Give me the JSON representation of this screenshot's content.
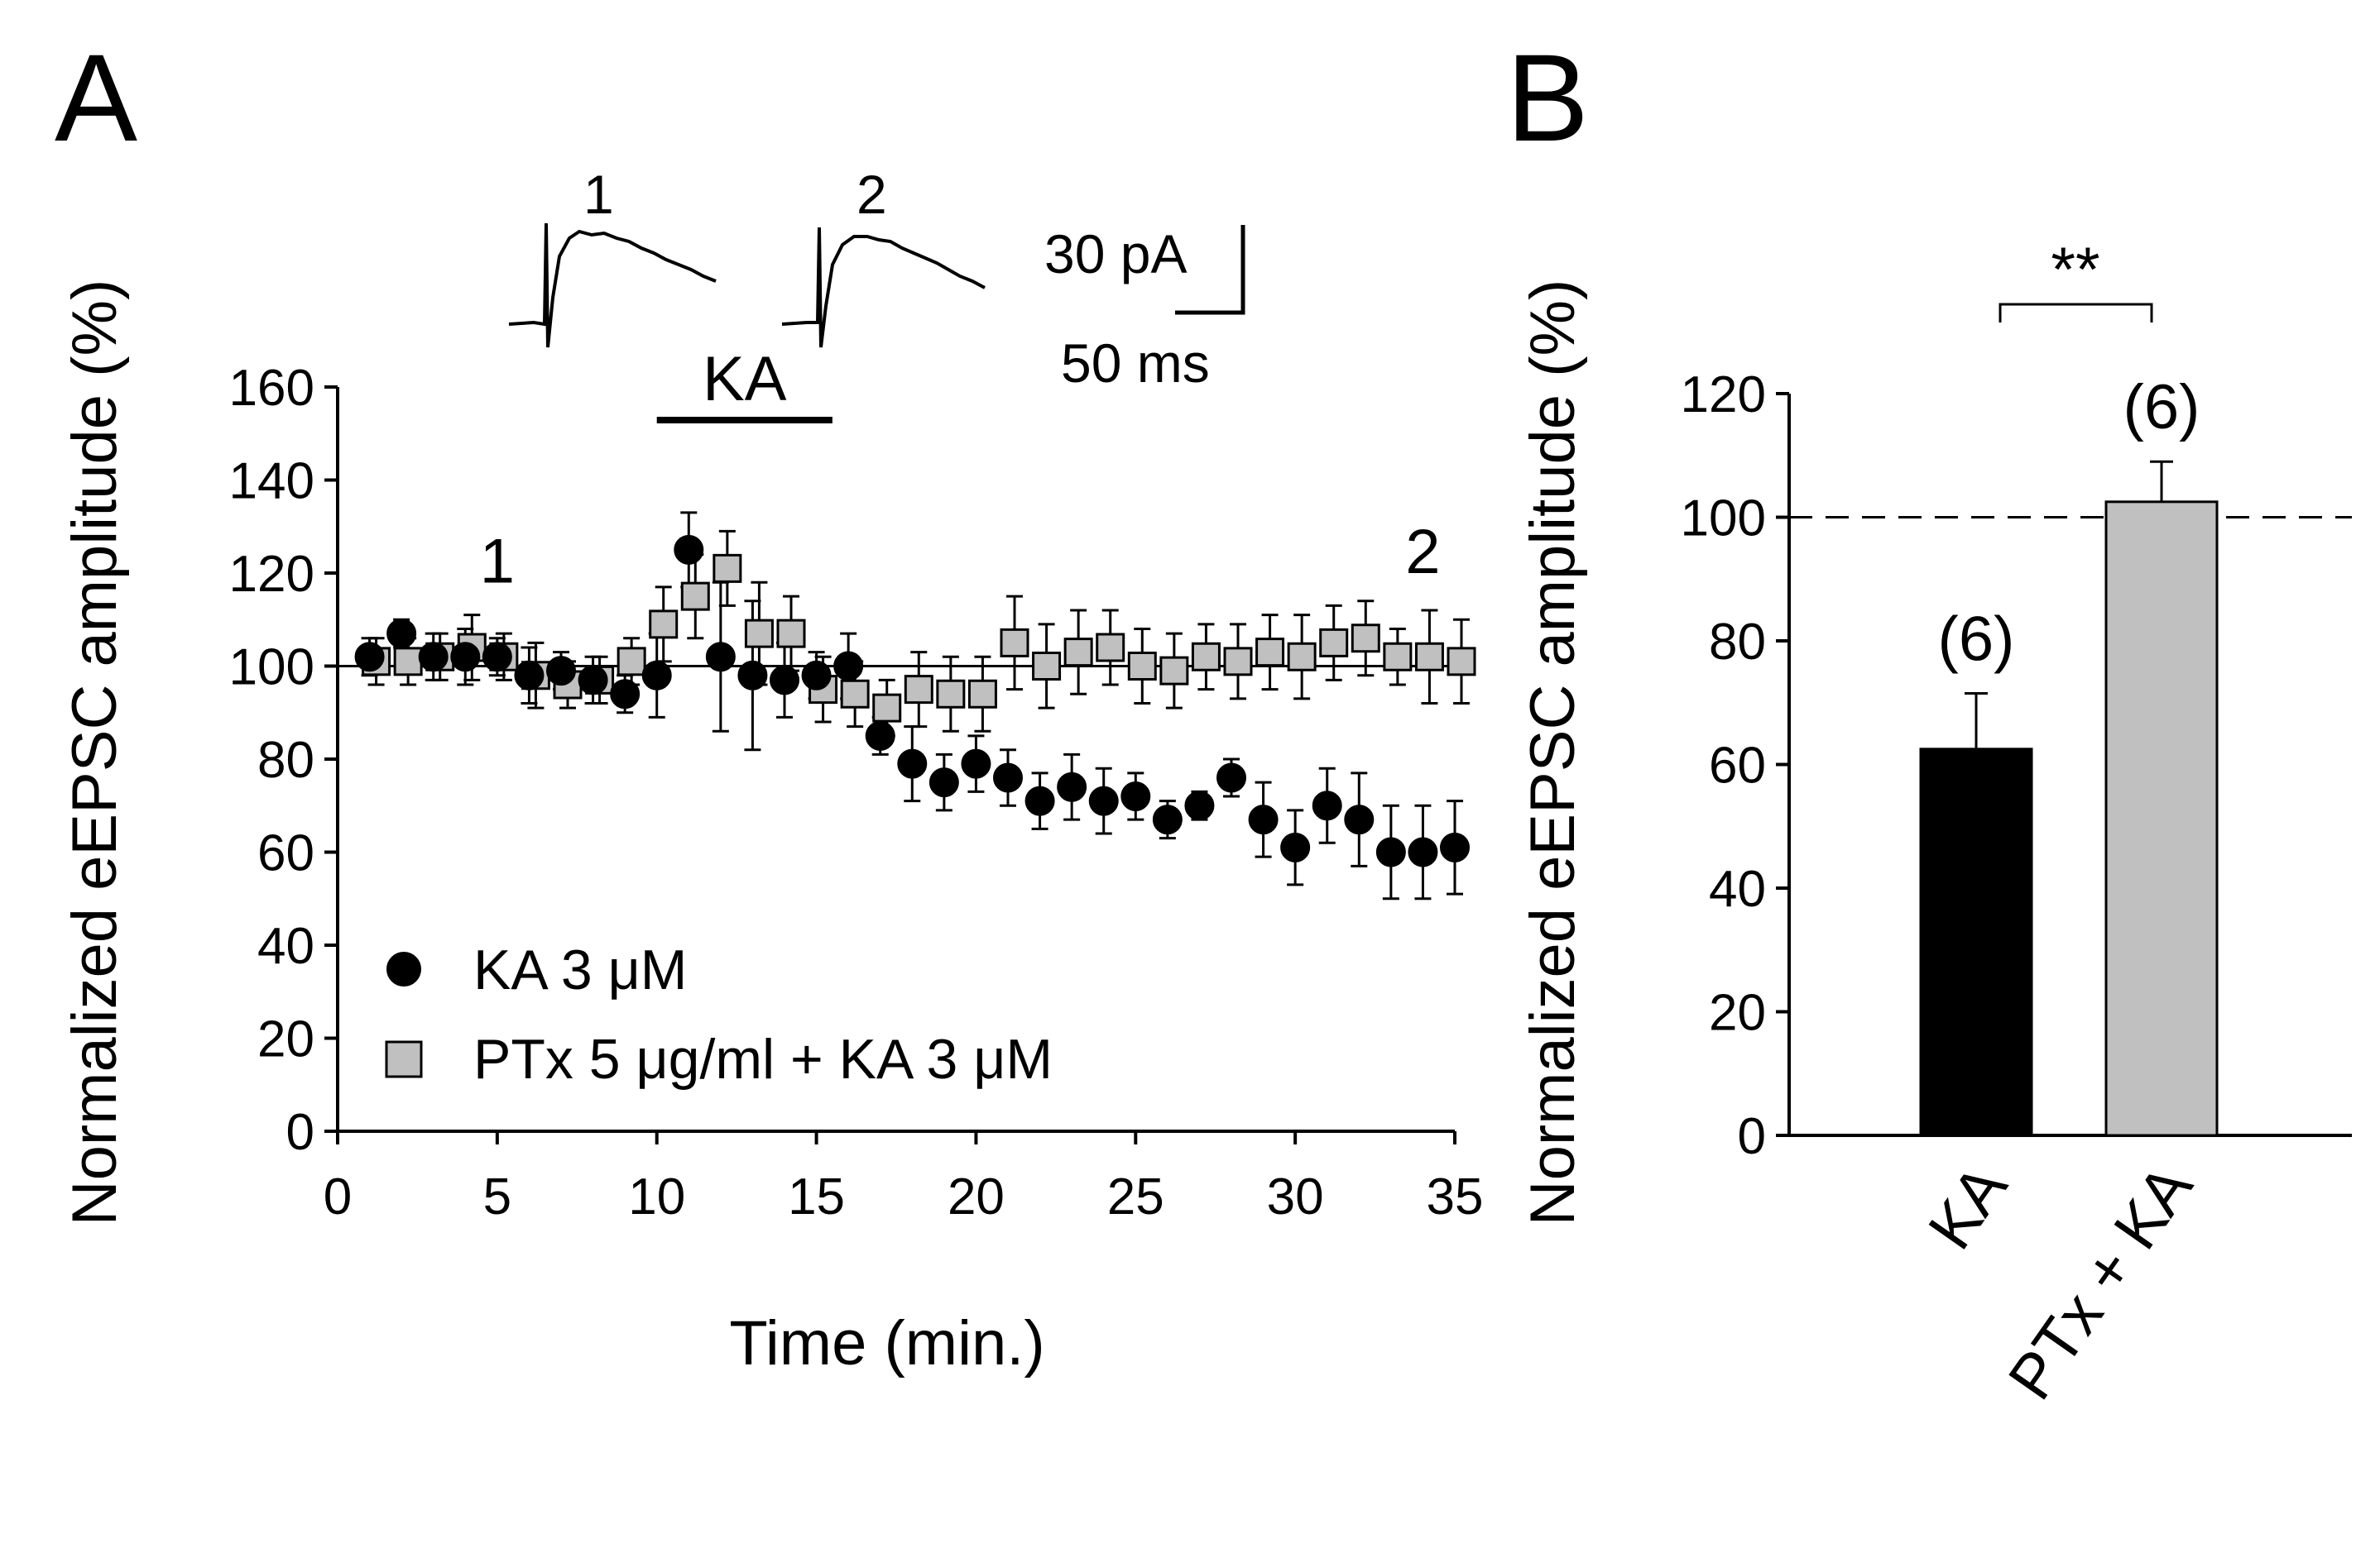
{
  "panels": {
    "A": {
      "letter": "A",
      "chart_data": {
        "type": "scatter",
        "xlabel": "Time (min.)",
        "ylabel": "Normalized eEPSC amplitude (%)",
        "xlim": [
          0,
          35
        ],
        "ylim": [
          0,
          160
        ],
        "xticks": [
          0,
          5,
          10,
          15,
          20,
          25,
          30,
          35
        ],
        "yticks": [
          0,
          20,
          40,
          60,
          80,
          100,
          120,
          140,
          160
        ],
        "baseline": 100,
        "legend_position": "lower-left",
        "drug_bar": {
          "label": "KA",
          "from": 10,
          "to": 15.5
        },
        "timepoint_labels": [
          {
            "text": "1",
            "x": 5,
            "y": 118
          },
          {
            "text": "2",
            "x": 34,
            "y": 120
          }
        ],
        "series": [
          {
            "name": "KA 3 μM",
            "marker": "circle",
            "color": "#000000",
            "x": [
              1,
              2,
              3,
              4,
              5,
              6,
              7,
              8,
              9,
              10,
              11,
              12,
              13,
              14,
              15,
              16,
              17,
              18,
              19,
              20,
              21,
              22,
              23,
              24,
              25,
              26,
              27,
              28,
              29,
              30,
              31,
              32,
              33,
              34,
              35
            ],
            "y": [
              102,
              107,
              102,
              102,
              102,
              98,
              99,
              97,
              94,
              98,
              125,
              102,
              98,
              97,
              98,
              100,
              85,
              79,
              75,
              79,
              76,
              71,
              74,
              71,
              72,
              67,
              70,
              76,
              67,
              61,
              70,
              67,
              60,
              60,
              61
            ],
            "err": [
              4,
              3,
              5,
              6,
              4,
              6,
              4,
              5,
              4,
              9,
              8,
              16,
              16,
              8,
              5,
              7,
              4,
              8,
              6,
              6,
              6,
              6,
              7,
              7,
              5,
              4,
              3,
              4,
              8,
              8,
              8,
              10,
              10,
              10,
              10
            ]
          },
          {
            "name": "PTx 5 μg/ml  + KA 3 μM",
            "marker": "square",
            "color": "#c0c0c0",
            "x": [
              1,
              2,
              3,
              4,
              5,
              6,
              7,
              8,
              9,
              10,
              11,
              12,
              13,
              14,
              15,
              16,
              17,
              18,
              19,
              20,
              21,
              22,
              23,
              24,
              25,
              26,
              27,
              28,
              29,
              30,
              31,
              32,
              33,
              34,
              35
            ],
            "y": [
              101,
              101,
              102,
              104,
              102,
              98,
              96,
              97,
              101,
              109,
              115,
              121,
              107,
              107,
              95,
              94,
              91,
              95,
              94,
              94,
              105,
              100,
              103,
              104,
              100,
              99,
              102,
              101,
              103,
              102,
              105,
              106,
              102,
              102,
              101
            ],
            "err": [
              5,
              5,
              5,
              7,
              5,
              7,
              5,
              5,
              5,
              8,
              9,
              8,
              11,
              8,
              7,
              7,
              6,
              8,
              8,
              8,
              10,
              9,
              9,
              8,
              8,
              8,
              7,
              8,
              8,
              9,
              8,
              8,
              6,
              10,
              9
            ]
          }
        ]
      },
      "inset": {
        "trace_labels": [
          "1",
          "2"
        ],
        "scale_y_label": "30 pA",
        "scale_x_label": "50 ms"
      }
    },
    "B": {
      "letter": "B",
      "chart_data": {
        "type": "bar",
        "categories": [
          "KA",
          "PTx + KA"
        ],
        "values": [
          62.5,
          102.5
        ],
        "err": [
          9,
          6.5
        ],
        "n_labels": [
          "(6)",
          "(6)"
        ],
        "colors": [
          "#000000",
          "#c0c0c0"
        ],
        "ylabel": "Normalized eEPSC amplitude (%)",
        "ylim": [
          0,
          120
        ],
        "yticks": [
          0,
          20,
          40,
          60,
          80,
          100,
          120
        ],
        "reference_line": 100,
        "significance": "**"
      }
    }
  }
}
